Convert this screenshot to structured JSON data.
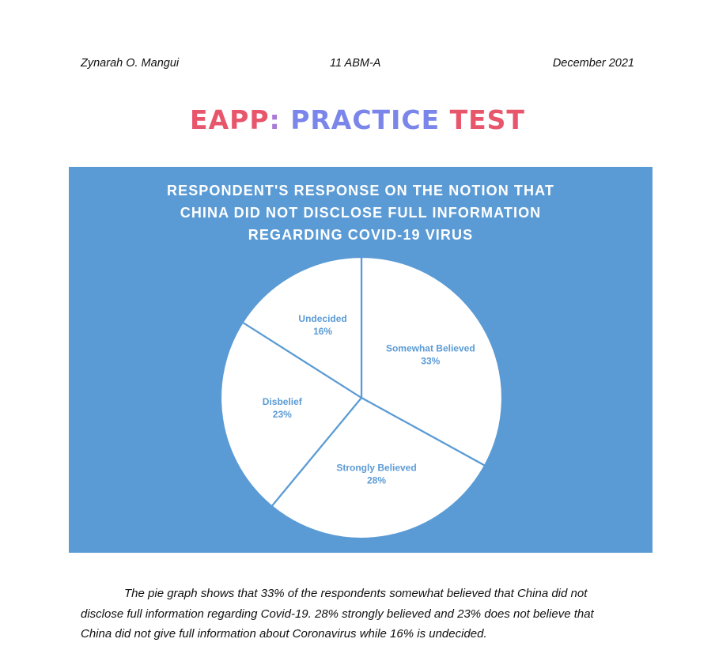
{
  "header": {
    "author": "Zynarah O. Mangui",
    "section": "11 ABM-A",
    "date": "December 2021"
  },
  "page_title": {
    "part1": "EAPP",
    "part2": ": ",
    "part3": "PRACTICE",
    "part4": " TEST"
  },
  "chart_data": {
    "type": "pie",
    "title_lines": [
      "RESPONDENT'S RESPONSE ON THE NOTION THAT",
      "CHINA DID NOT DISCLOSE FULL INFORMATION",
      "REGARDING COVID-19 VIRUS"
    ],
    "slices": [
      {
        "label": "Somewhat Believed",
        "value": 33,
        "value_label": "33%"
      },
      {
        "label": "Strongly Believed",
        "value": 28,
        "value_label": "28%"
      },
      {
        "label": "Disbelief",
        "value": 23,
        "value_label": "23%"
      },
      {
        "label": "Undecided",
        "value": 16,
        "value_label": "16%"
      }
    ],
    "start": "12 o'clock",
    "direction": "clockwise",
    "colors": {
      "panel_background": "#5b9bd5",
      "slice_fill": "#ffffff",
      "slice_border": "#5b9bd5",
      "label_text": "#5b9bd5",
      "title_text": "#ffffff"
    }
  },
  "paragraph": {
    "lines": [
      "The pie graph shows that 33% of the respondents somewhat believed that China did not",
      "disclose full information regarding Covid-19. 28% strongly believed and 23% does not believe that",
      "China did not give full information about Coronavirus while 16% is undecided."
    ]
  }
}
